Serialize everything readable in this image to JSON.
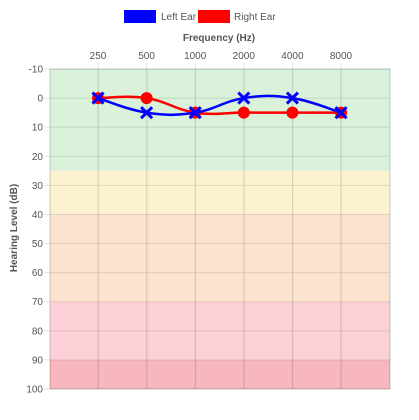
{
  "chart_data": {
    "type": "line",
    "title": "",
    "xlabel": "Frequency (Hz)",
    "ylabel": "Hearing Level (dB)",
    "categories": [
      "250",
      "500",
      "1000",
      "2000",
      "4000",
      "8000"
    ],
    "y_ticks": [
      "-10",
      "0",
      "10",
      "20",
      "30",
      "40",
      "50",
      "60",
      "70",
      "80",
      "90",
      "100"
    ],
    "ylim": [
      -10,
      100
    ],
    "y_reversed": true,
    "x_axis_position": "top",
    "grid": true,
    "legend_position": "top",
    "bands": [
      {
        "from": -10,
        "to": 25,
        "color": "#d9f2d9"
      },
      {
        "from": 25,
        "to": 40,
        "color": "#fdf2d0"
      },
      {
        "from": 40,
        "to": 70,
        "color": "#fce3d0"
      },
      {
        "from": 70,
        "to": 90,
        "color": "#fbd0d6"
      },
      {
        "from": 90,
        "to": 100,
        "color": "#f8b6be"
      }
    ],
    "series": [
      {
        "name": "Left Ear",
        "color": "#0000ff",
        "marker": "cross",
        "values": [
          0,
          5,
          5,
          0,
          0,
          5
        ]
      },
      {
        "name": "Right Ear",
        "color": "#ff0000",
        "marker": "circle",
        "values": [
          0,
          0,
          5,
          5,
          5,
          5
        ]
      }
    ]
  }
}
